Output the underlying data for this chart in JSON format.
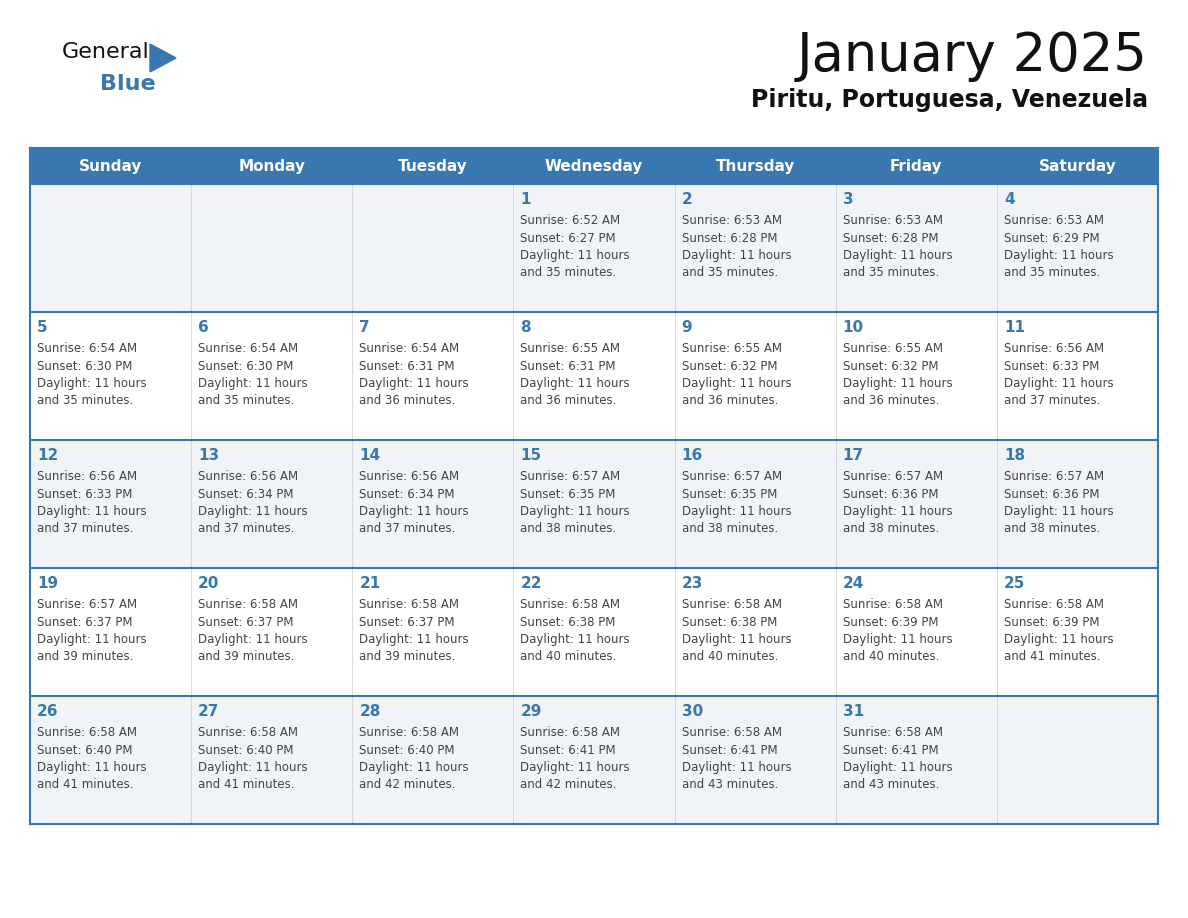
{
  "title": "January 2025",
  "subtitle": "Piritu, Portuguesa, Venezuela",
  "header_color": "#3878ae",
  "header_text_color": "#ffffff",
  "cell_bg_even": "#f0f4f8",
  "cell_bg_odd": "#ffffff",
  "day_number_color": "#3878ae",
  "text_color": "#444444",
  "border_color": "#3878ae",
  "line_color": "#3878ae",
  "days_of_week": [
    "Sunday",
    "Monday",
    "Tuesday",
    "Wednesday",
    "Thursday",
    "Friday",
    "Saturday"
  ],
  "calendar": [
    [
      {
        "day": "",
        "sunrise": "",
        "sunset": "",
        "daylight": ""
      },
      {
        "day": "",
        "sunrise": "",
        "sunset": "",
        "daylight": ""
      },
      {
        "day": "",
        "sunrise": "",
        "sunset": "",
        "daylight": ""
      },
      {
        "day": "1",
        "sunrise": "6:52 AM",
        "sunset": "6:27 PM",
        "daylight": "11 hours and 35 minutes."
      },
      {
        "day": "2",
        "sunrise": "6:53 AM",
        "sunset": "6:28 PM",
        "daylight": "11 hours and 35 minutes."
      },
      {
        "day": "3",
        "sunrise": "6:53 AM",
        "sunset": "6:28 PM",
        "daylight": "11 hours and 35 minutes."
      },
      {
        "day": "4",
        "sunrise": "6:53 AM",
        "sunset": "6:29 PM",
        "daylight": "11 hours and 35 minutes."
      }
    ],
    [
      {
        "day": "5",
        "sunrise": "6:54 AM",
        "sunset": "6:30 PM",
        "daylight": "11 hours and 35 minutes."
      },
      {
        "day": "6",
        "sunrise": "6:54 AM",
        "sunset": "6:30 PM",
        "daylight": "11 hours and 35 minutes."
      },
      {
        "day": "7",
        "sunrise": "6:54 AM",
        "sunset": "6:31 PM",
        "daylight": "11 hours and 36 minutes."
      },
      {
        "day": "8",
        "sunrise": "6:55 AM",
        "sunset": "6:31 PM",
        "daylight": "11 hours and 36 minutes."
      },
      {
        "day": "9",
        "sunrise": "6:55 AM",
        "sunset": "6:32 PM",
        "daylight": "11 hours and 36 minutes."
      },
      {
        "day": "10",
        "sunrise": "6:55 AM",
        "sunset": "6:32 PM",
        "daylight": "11 hours and 36 minutes."
      },
      {
        "day": "11",
        "sunrise": "6:56 AM",
        "sunset": "6:33 PM",
        "daylight": "11 hours and 37 minutes."
      }
    ],
    [
      {
        "day": "12",
        "sunrise": "6:56 AM",
        "sunset": "6:33 PM",
        "daylight": "11 hours and 37 minutes."
      },
      {
        "day": "13",
        "sunrise": "6:56 AM",
        "sunset": "6:34 PM",
        "daylight": "11 hours and 37 minutes."
      },
      {
        "day": "14",
        "sunrise": "6:56 AM",
        "sunset": "6:34 PM",
        "daylight": "11 hours and 37 minutes."
      },
      {
        "day": "15",
        "sunrise": "6:57 AM",
        "sunset": "6:35 PM",
        "daylight": "11 hours and 38 minutes."
      },
      {
        "day": "16",
        "sunrise": "6:57 AM",
        "sunset": "6:35 PM",
        "daylight": "11 hours and 38 minutes."
      },
      {
        "day": "17",
        "sunrise": "6:57 AM",
        "sunset": "6:36 PM",
        "daylight": "11 hours and 38 minutes."
      },
      {
        "day": "18",
        "sunrise": "6:57 AM",
        "sunset": "6:36 PM",
        "daylight": "11 hours and 38 minutes."
      }
    ],
    [
      {
        "day": "19",
        "sunrise": "6:57 AM",
        "sunset": "6:37 PM",
        "daylight": "11 hours and 39 minutes."
      },
      {
        "day": "20",
        "sunrise": "6:58 AM",
        "sunset": "6:37 PM",
        "daylight": "11 hours and 39 minutes."
      },
      {
        "day": "21",
        "sunrise": "6:58 AM",
        "sunset": "6:37 PM",
        "daylight": "11 hours and 39 minutes."
      },
      {
        "day": "22",
        "sunrise": "6:58 AM",
        "sunset": "6:38 PM",
        "daylight": "11 hours and 40 minutes."
      },
      {
        "day": "23",
        "sunrise": "6:58 AM",
        "sunset": "6:38 PM",
        "daylight": "11 hours and 40 minutes."
      },
      {
        "day": "24",
        "sunrise": "6:58 AM",
        "sunset": "6:39 PM",
        "daylight": "11 hours and 40 minutes."
      },
      {
        "day": "25",
        "sunrise": "6:58 AM",
        "sunset": "6:39 PM",
        "daylight": "11 hours and 41 minutes."
      }
    ],
    [
      {
        "day": "26",
        "sunrise": "6:58 AM",
        "sunset": "6:40 PM",
        "daylight": "11 hours and 41 minutes."
      },
      {
        "day": "27",
        "sunrise": "6:58 AM",
        "sunset": "6:40 PM",
        "daylight": "11 hours and 41 minutes."
      },
      {
        "day": "28",
        "sunrise": "6:58 AM",
        "sunset": "6:40 PM",
        "daylight": "11 hours and 42 minutes."
      },
      {
        "day": "29",
        "sunrise": "6:58 AM",
        "sunset": "6:41 PM",
        "daylight": "11 hours and 42 minutes."
      },
      {
        "day": "30",
        "sunrise": "6:58 AM",
        "sunset": "6:41 PM",
        "daylight": "11 hours and 43 minutes."
      },
      {
        "day": "31",
        "sunrise": "6:58 AM",
        "sunset": "6:41 PM",
        "daylight": "11 hours and 43 minutes."
      },
      {
        "day": "",
        "sunrise": "",
        "sunset": "",
        "daylight": ""
      }
    ]
  ]
}
